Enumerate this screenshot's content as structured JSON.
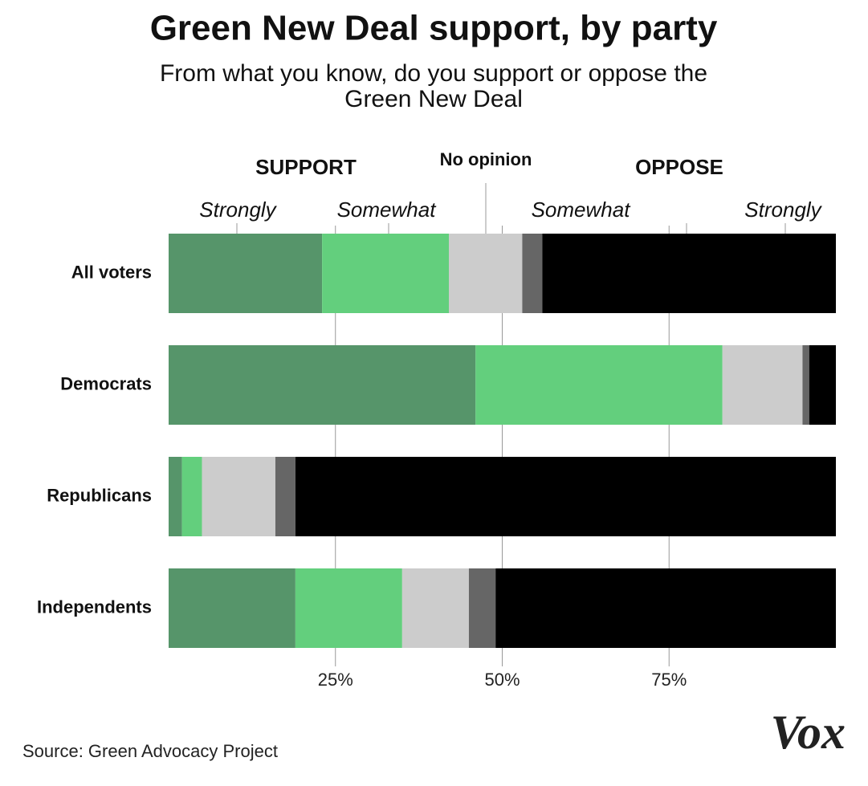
{
  "chart_data": {
    "type": "stacked-bar",
    "orientation": "horizontal",
    "title": "Green New Deal support, by party",
    "subtitle": "From what you know, do you support or oppose the Green New Deal",
    "groups": [
      "SUPPORT",
      "OPPOSE"
    ],
    "categories": [
      "All voters",
      "Democrats",
      "Republicans",
      "Independents"
    ],
    "series": [
      {
        "name": "Strongly",
        "color": "#56956a",
        "values": [
          23,
          46,
          2,
          19
        ]
      },
      {
        "name": "Somewhat",
        "color": "#63cf7d",
        "values": [
          19,
          37,
          3,
          16
        ]
      },
      {
        "name": "No opinion",
        "color": "#cccccc",
        "values": [
          11,
          12,
          11,
          10
        ]
      },
      {
        "name": "Somewhat",
        "color": "#666666",
        "values": [
          3,
          1,
          3,
          4
        ]
      },
      {
        "name": "Strongly",
        "color": "#000000",
        "values": [
          44,
          4,
          81,
          51
        ]
      }
    ],
    "xlim": [
      0,
      100
    ],
    "xticks": [
      {
        "value": 25,
        "label": "25%"
      },
      {
        "value": 50,
        "label": "50%"
      },
      {
        "value": 75,
        "label": "75%"
      }
    ],
    "grid": true,
    "source": "Source: Green Advocacy Project",
    "logo": "Vox"
  }
}
